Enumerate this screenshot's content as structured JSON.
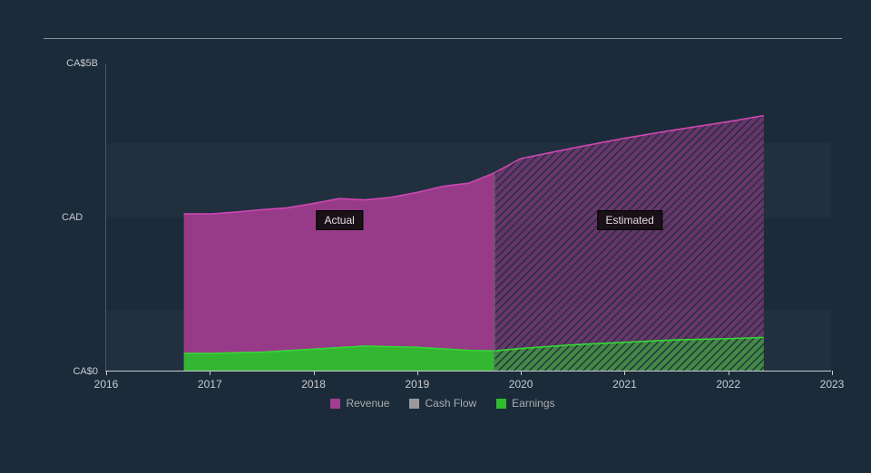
{
  "chart": {
    "type": "area",
    "background_color": "#1c2b3a",
    "text_color": "#c8ccd0",
    "divider_color": "#8a8f96",
    "currency_label": "CAD",
    "y_axis": {
      "min": 0,
      "max": 5,
      "top_label": "CA$5B",
      "bottom_label": "CA$0"
    },
    "x_axis": {
      "min": 2016,
      "max": 2023,
      "ticks": [
        2016,
        2017,
        2018,
        2019,
        2020,
        2021,
        2022,
        2023
      ]
    },
    "grid_bands": [
      {
        "from": 0,
        "to": 1,
        "color": "rgba(255,255,255,0.025)"
      },
      {
        "from": 2.5,
        "to": 3.7,
        "color": "rgba(255,255,255,0.025)"
      }
    ],
    "split_year": 2019.75,
    "regions": {
      "actual_label": "Actual",
      "estimated_label": "Estimated"
    },
    "series": {
      "revenue": {
        "label": "Revenue",
        "color": "#a23d8f",
        "stroke": "#d046b3",
        "points": [
          [
            2016.75,
            2.55
          ],
          [
            2017.0,
            2.55
          ],
          [
            2017.25,
            2.58
          ],
          [
            2017.5,
            2.62
          ],
          [
            2017.75,
            2.65
          ],
          [
            2018.0,
            2.72
          ],
          [
            2018.25,
            2.8
          ],
          [
            2018.5,
            2.78
          ],
          [
            2018.75,
            2.82
          ],
          [
            2019.0,
            2.9
          ],
          [
            2019.25,
            3.0
          ],
          [
            2019.5,
            3.05
          ],
          [
            2019.75,
            3.22
          ],
          [
            2020.0,
            3.45
          ],
          [
            2020.5,
            3.62
          ],
          [
            2021.0,
            3.78
          ],
          [
            2021.5,
            3.92
          ],
          [
            2022.0,
            4.05
          ],
          [
            2022.35,
            4.15
          ]
        ]
      },
      "cashflow": {
        "label": "Cash Flow",
        "color": "#9a9a9a",
        "points": []
      },
      "earnings": {
        "label": "Earnings",
        "color": "#2dbd2d",
        "stroke": "#34d834",
        "points": [
          [
            2016.75,
            0.28
          ],
          [
            2017.0,
            0.28
          ],
          [
            2017.5,
            0.3
          ],
          [
            2018.0,
            0.35
          ],
          [
            2018.5,
            0.4
          ],
          [
            2019.0,
            0.38
          ],
          [
            2019.5,
            0.33
          ],
          [
            2019.75,
            0.32
          ],
          [
            2020.0,
            0.36
          ],
          [
            2020.5,
            0.42
          ],
          [
            2021.0,
            0.46
          ],
          [
            2021.5,
            0.5
          ],
          [
            2022.0,
            0.52
          ],
          [
            2022.35,
            0.54
          ]
        ]
      }
    },
    "hatch": {
      "color_revenue": "#d046b3",
      "color_earnings": "#34d834",
      "spacing": 5
    },
    "legend_items": [
      "Revenue",
      "Cash Flow",
      "Earnings"
    ]
  }
}
